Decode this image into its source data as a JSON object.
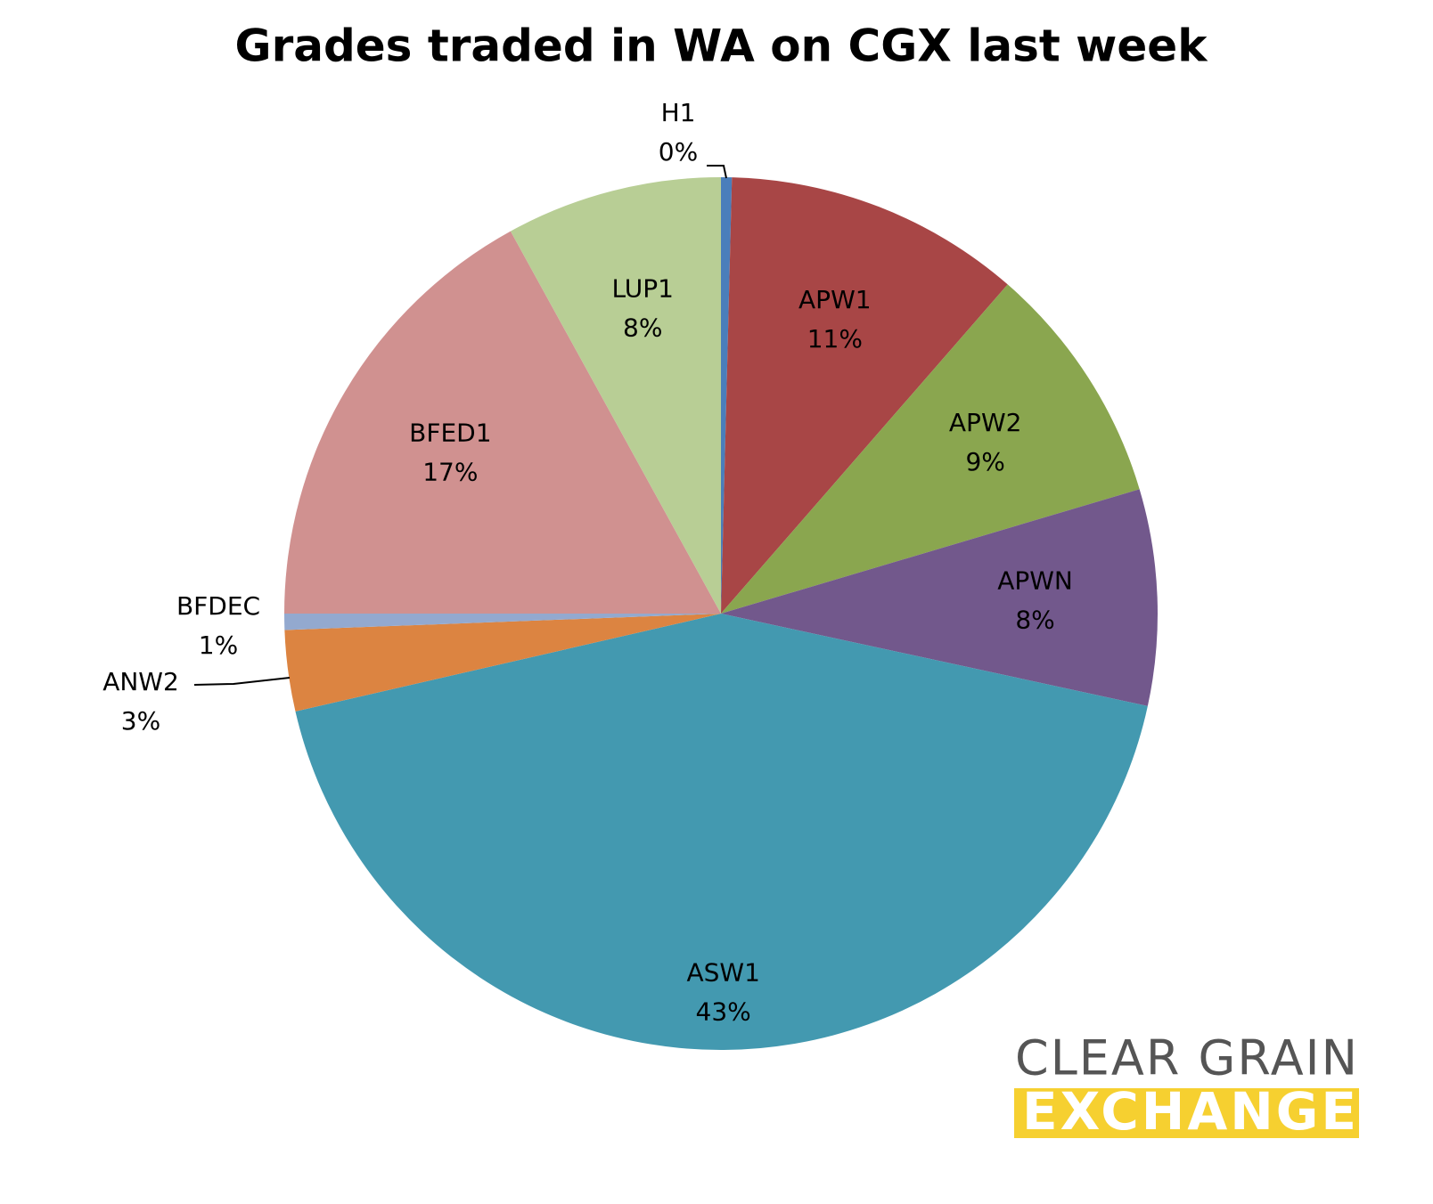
{
  "chart_data": {
    "type": "pie",
    "title": "Grades traded in WA on CGX last week",
    "categories": [
      "H1",
      "APW1",
      "APW2",
      "APWN",
      "ASW1",
      "ANW2",
      "BFDEC",
      "BFED1",
      "LUP1"
    ],
    "values": [
      0.4,
      11,
      9,
      8,
      43,
      3,
      0.6,
      17,
      8
    ],
    "value_labels": [
      "0%",
      "11%",
      "9%",
      "8%",
      "43%",
      "3%",
      "1%",
      "17%",
      "8%"
    ],
    "colors": [
      "#4a7ebb",
      "#a84646",
      "#8aa64f",
      "#72588c",
      "#4399b0",
      "#dc8441",
      "#93a9cf",
      "#d09190",
      "#b8ce95"
    ]
  },
  "logo": {
    "line1": "CLEAR GRAIN",
    "line2": "EXCHANGE"
  }
}
